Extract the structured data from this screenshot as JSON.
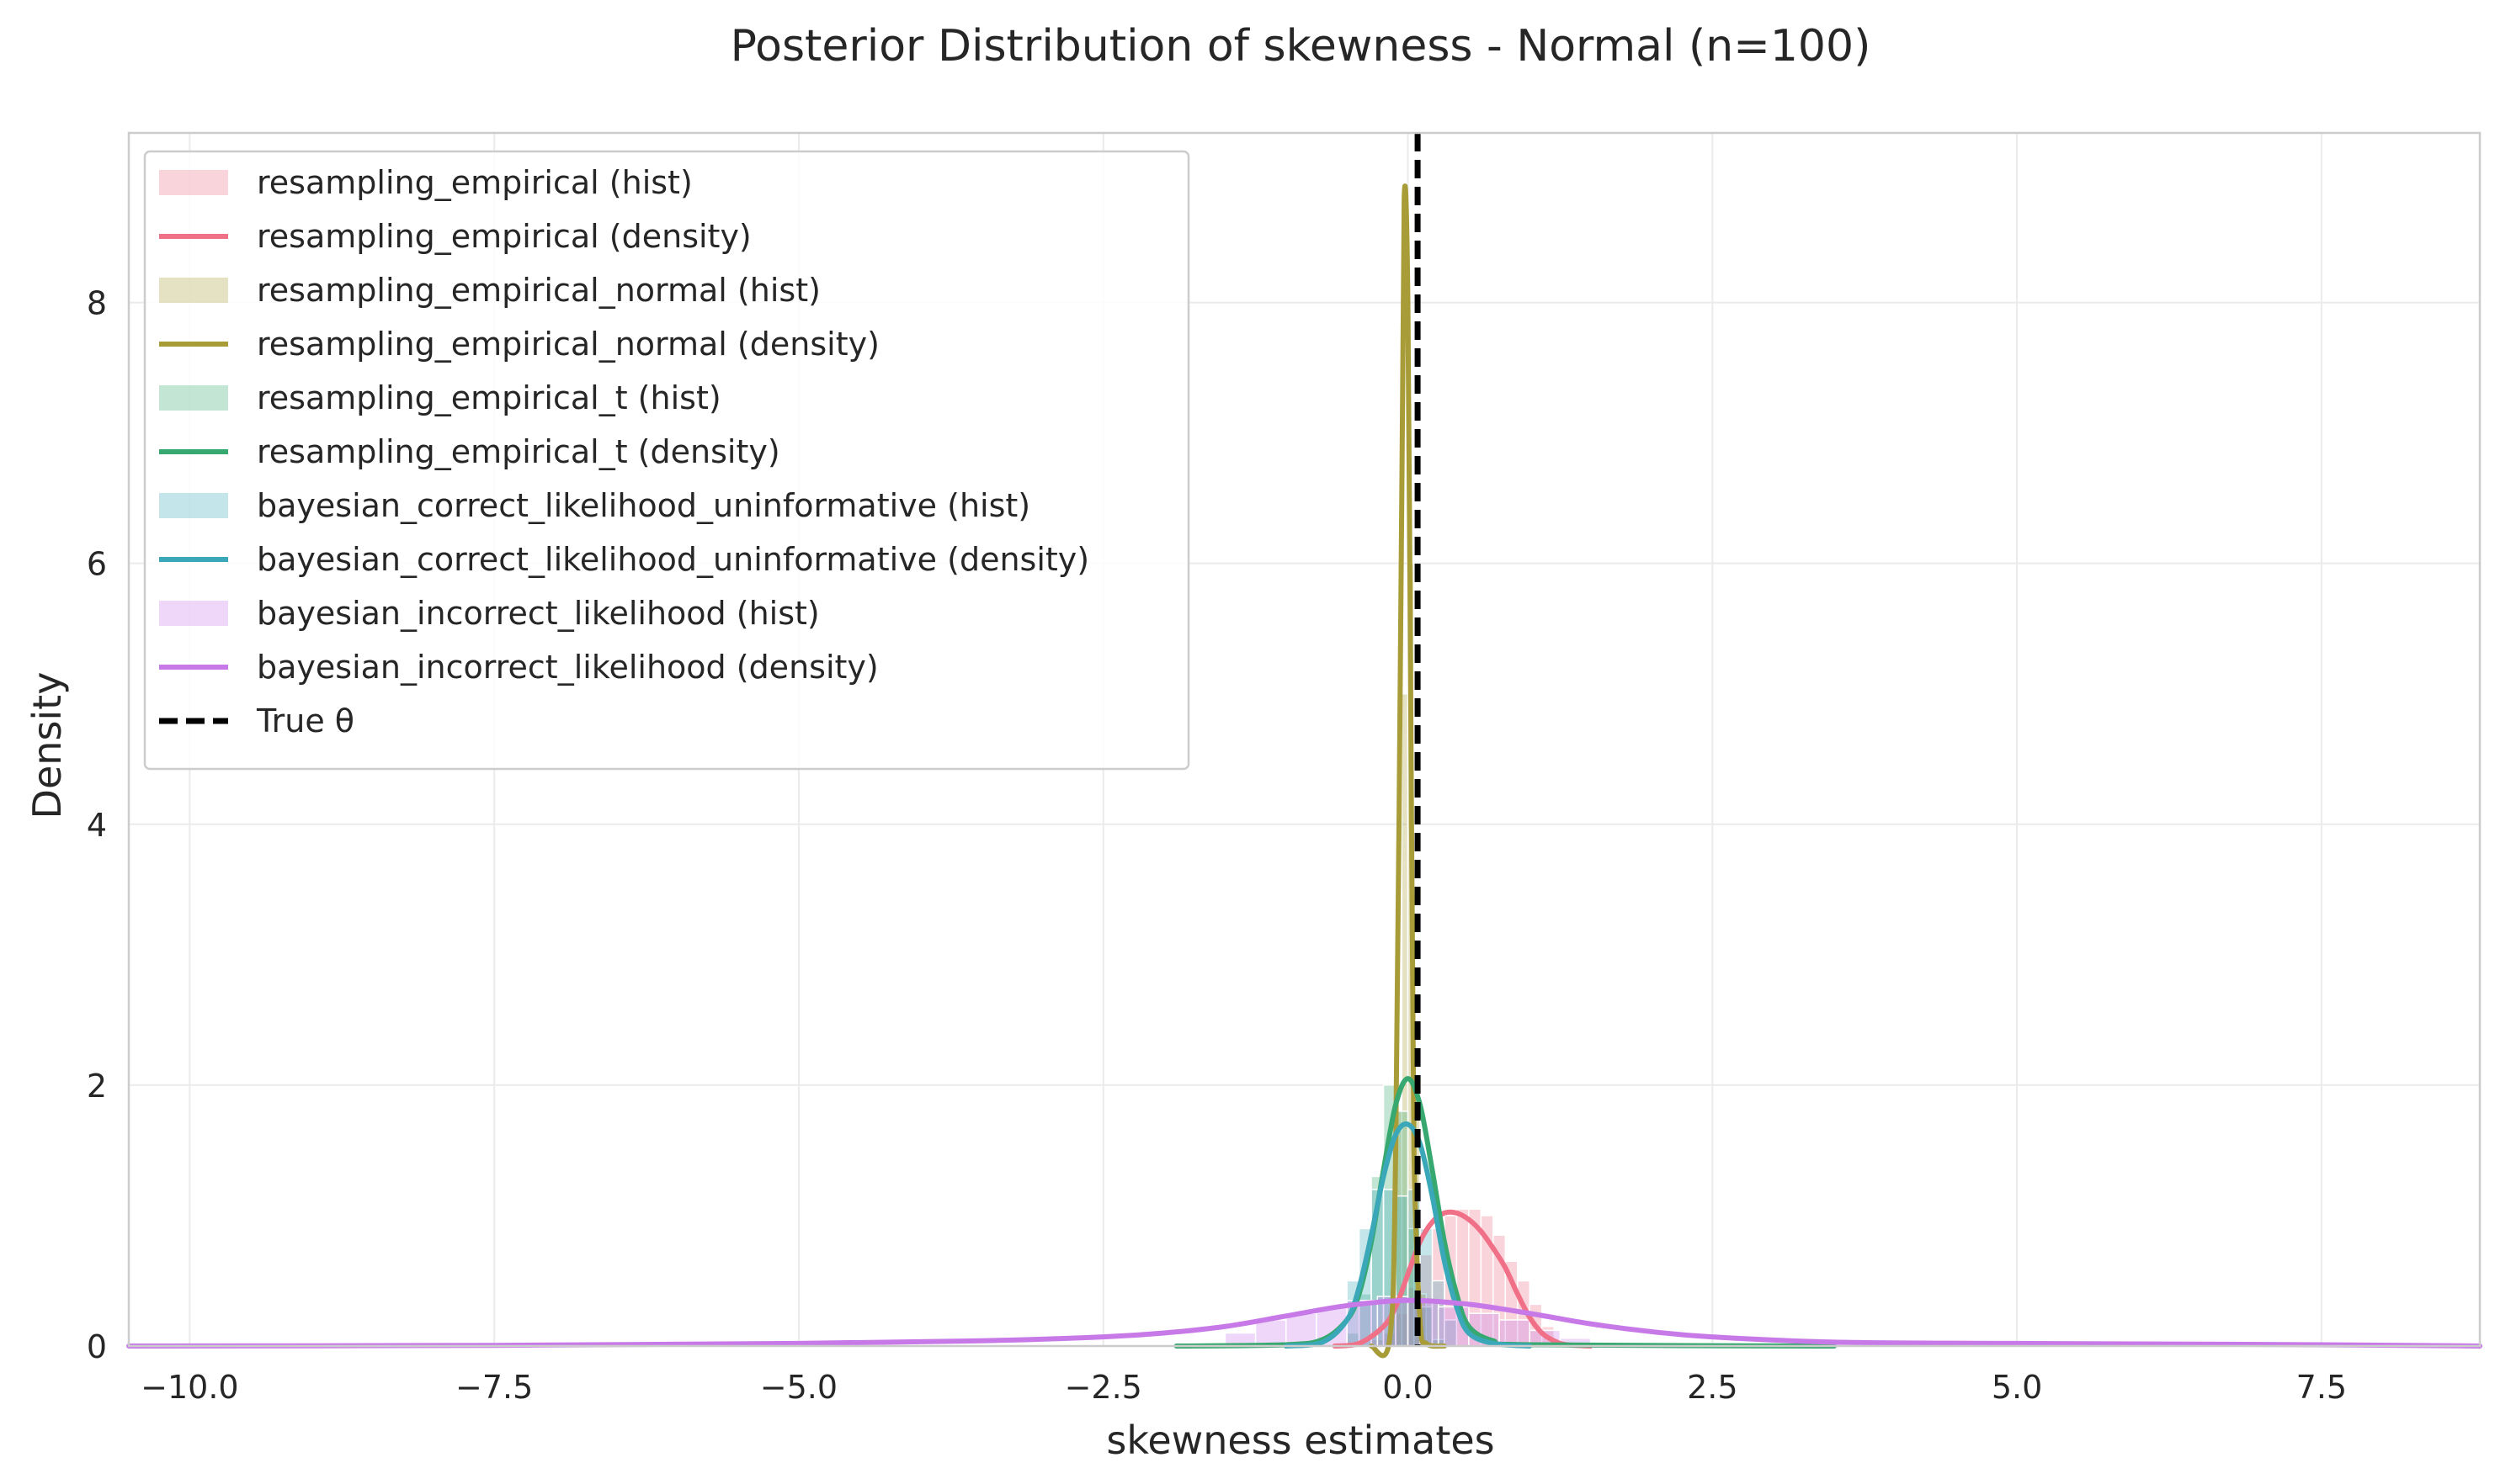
{
  "chart_data": {
    "type": "line",
    "title": "Posterior Distribution of skewness - Normal (n=100)",
    "xlabel": "skewness estimates",
    "ylabel": "Density",
    "xlim": [
      -10.5,
      8.8
    ],
    "ylim": [
      0,
      9.3
    ],
    "xticks": [
      -10.0,
      -7.5,
      -5.0,
      -2.5,
      0.0,
      2.5,
      5.0,
      7.5
    ],
    "xtick_labels": [
      "−10.0",
      "−7.5",
      "−5.0",
      "−2.5",
      "0.0",
      "2.5",
      "5.0",
      "7.5"
    ],
    "yticks": [
      0,
      2,
      4,
      6,
      8
    ],
    "ytick_labels": [
      "0",
      "2",
      "4",
      "6",
      "8"
    ],
    "grid": true,
    "legend_position": "top-left",
    "true_theta": 0.08,
    "series": [
      {
        "name": "resampling_empirical",
        "color": "#f07088",
        "hist_label": "resampling_empirical (hist)",
        "density_label": "resampling_empirical (density)",
        "hist": {
          "bin_width": 0.1,
          "edges_start": -0.3,
          "values": [
            0.05,
            0.1,
            0.25,
            0.45,
            0.7,
            0.9,
            1.0,
            1.05,
            1.05,
            1.0,
            0.85,
            0.65,
            0.5,
            0.32,
            0.15
          ]
        },
        "density": {
          "x": [
            -0.6,
            -0.4,
            -0.2,
            -0.1,
            0.0,
            0.1,
            0.2,
            0.3,
            0.4,
            0.5,
            0.6,
            0.7,
            0.8,
            0.9,
            1.0,
            1.1,
            1.2,
            1.3,
            1.5
          ],
          "y": [
            0.0,
            0.02,
            0.15,
            0.3,
            0.55,
            0.8,
            0.95,
            1.02,
            1.02,
            0.97,
            0.88,
            0.75,
            0.6,
            0.4,
            0.22,
            0.1,
            0.04,
            0.01,
            0.0
          ]
        }
      },
      {
        "name": "resampling_empirical_normal",
        "color": "#a89c38",
        "hist_label": "resampling_empirical_normal (hist)",
        "density_label": "resampling_empirical_normal (density)",
        "hist": {
          "bin_width": 0.05,
          "edges_start": -0.15,
          "values": [
            0.3,
            1.8,
            5.0,
            6.0,
            2.0,
            0.4
          ]
        },
        "density": {
          "x": [
            -0.3,
            -0.15,
            -0.1,
            -0.05,
            -0.03,
            0.0,
            0.03,
            0.05,
            0.1,
            0.15,
            0.3
          ],
          "y": [
            0.0,
            0.05,
            1.5,
            6.5,
            8.8,
            8.0,
            4.0,
            1.5,
            0.2,
            0.02,
            0.0
          ]
        }
      },
      {
        "name": "resampling_empirical_t",
        "color": "#36a870",
        "hist_label": "resampling_empirical_t (hist)",
        "density_label": "resampling_empirical_t (density)",
        "hist": {
          "bin_width": 0.1,
          "edges_start": -0.5,
          "values": [
            0.1,
            0.4,
            1.3,
            2.0,
            1.8,
            0.9,
            0.3,
            0.05
          ]
        },
        "density": {
          "x": [
            -1.9,
            -1.0,
            -0.7,
            -0.5,
            -0.4,
            -0.3,
            -0.2,
            -0.1,
            0.0,
            0.1,
            0.2,
            0.3,
            0.4,
            0.5,
            0.7,
            1.0,
            3.5
          ],
          "y": [
            0.0,
            0.01,
            0.05,
            0.2,
            0.4,
            0.8,
            1.35,
            1.85,
            2.05,
            1.85,
            1.35,
            0.8,
            0.4,
            0.15,
            0.04,
            0.01,
            0.0
          ]
        }
      },
      {
        "name": "bayesian_correct_likelihood_uninformative",
        "color": "#3aa8b8",
        "hist_label": "bayesian_correct_likelihood_uninformative (hist)",
        "density_label": "bayesian_correct_likelihood_uninformative (density)",
        "hist": {
          "bin_width": 0.1,
          "edges_start": -0.5,
          "values": [
            0.5,
            0.9,
            1.2,
            1.2,
            1.15,
            1.2,
            0.9,
            0.5,
            0.2
          ]
        },
        "density": {
          "x": [
            -1.0,
            -0.7,
            -0.5,
            -0.4,
            -0.3,
            -0.2,
            -0.1,
            0.0,
            0.1,
            0.2,
            0.3,
            0.4,
            0.5,
            0.7,
            1.0
          ],
          "y": [
            0.0,
            0.03,
            0.2,
            0.45,
            0.85,
            1.3,
            1.62,
            1.7,
            1.55,
            1.15,
            0.65,
            0.3,
            0.1,
            0.02,
            0.0
          ]
        }
      },
      {
        "name": "bayesian_incorrect_likelihood",
        "color": "#c879e8",
        "hist_label": "bayesian_incorrect_likelihood (hist)",
        "density_label": "bayesian_incorrect_likelihood (density)",
        "hist": {
          "bin_width": 0.25,
          "edges_start": -1.5,
          "values": [
            0.1,
            0.2,
            0.25,
            0.3,
            0.35,
            0.38,
            0.35,
            0.3,
            0.25,
            0.2,
            0.12,
            0.06
          ]
        },
        "density": {
          "x": [
            -10.5,
            -7.5,
            -5.0,
            -3.5,
            -2.5,
            -2.0,
            -1.5,
            -1.0,
            -0.5,
            0.0,
            0.5,
            1.0,
            1.5,
            2.0,
            2.5,
            3.5,
            5.0,
            7.5,
            8.8
          ],
          "y": [
            0.0,
            0.005,
            0.02,
            0.04,
            0.07,
            0.1,
            0.15,
            0.23,
            0.31,
            0.35,
            0.32,
            0.25,
            0.17,
            0.11,
            0.07,
            0.03,
            0.02,
            0.01,
            0.0
          ]
        }
      }
    ],
    "true_theta_label": "True θ"
  }
}
